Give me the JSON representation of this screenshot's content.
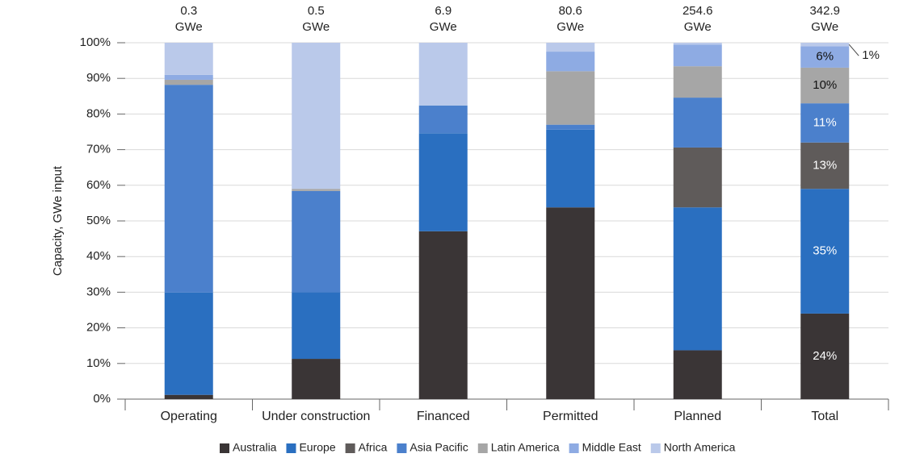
{
  "chart_data": {
    "type": "stacked_bar_percent",
    "y_axis_label": "Capacity, GWe input",
    "categories": [
      "Operating",
      "Under construction",
      "Financed",
      "Permitted",
      "Planned",
      "Total"
    ],
    "bar_totals": [
      {
        "value": 0.3,
        "label": "0.3"
      },
      {
        "value": 0.5,
        "label": "0.5"
      },
      {
        "value": 6.9,
        "label": "6.9"
      },
      {
        "value": 80.6,
        "label": "80.6"
      },
      {
        "value": 254.6,
        "label": "254.6"
      },
      {
        "value": 342.9,
        "label": "342.9"
      }
    ],
    "bar_total_unit": "GWe",
    "series": [
      {
        "name": "Australia",
        "color": "#3a3536",
        "values": [
          1.2,
          11.3,
          47.1,
          53.8,
          13.7,
          24
        ],
        "value_labels": [
          null,
          null,
          null,
          null,
          null,
          "24%"
        ]
      },
      {
        "name": "Europe",
        "color": "#2a6fc0",
        "values": [
          28.7,
          18.7,
          27.5,
          21.8,
          40.1,
          35
        ],
        "value_labels": [
          null,
          null,
          null,
          null,
          null,
          "35%"
        ]
      },
      {
        "name": "Africa",
        "color": "#5f5b5a",
        "values": [
          0,
          0,
          0,
          0,
          16.8,
          13
        ],
        "value_labels": [
          null,
          null,
          null,
          null,
          null,
          "13%"
        ]
      },
      {
        "name": "Asia Pacific",
        "color": "#4b80cc",
        "values": [
          58.3,
          28.4,
          7.8,
          1.4,
          14,
          11
        ],
        "value_labels": [
          null,
          null,
          null,
          null,
          null,
          "11%"
        ]
      },
      {
        "name": "Latin America",
        "color": "#a6a6a6",
        "values": [
          1.4,
          0.6,
          0,
          15,
          8.8,
          10
        ],
        "value_labels": [
          null,
          null,
          null,
          null,
          null,
          "10%"
        ]
      },
      {
        "name": "Middle East",
        "color": "#8eabe3",
        "values": [
          1.4,
          0,
          0,
          5.5,
          6.1,
          6
        ],
        "value_labels": [
          null,
          null,
          null,
          null,
          null,
          "6%"
        ]
      },
      {
        "name": "North America",
        "color": "#bac9ea",
        "values": [
          9,
          41,
          17.6,
          2.5,
          0.5,
          1
        ],
        "value_labels": [
          null,
          null,
          null,
          null,
          null,
          "1%"
        ]
      }
    ],
    "ylim": [
      0,
      100
    ],
    "yticks": [
      {
        "value": 0,
        "label": "0%"
      },
      {
        "value": 10,
        "label": "10%"
      },
      {
        "value": 20,
        "label": "20%"
      },
      {
        "value": 30,
        "label": "30%"
      },
      {
        "value": 40,
        "label": "40%"
      },
      {
        "value": 50,
        "label": "50%"
      },
      {
        "value": 60,
        "label": "60%"
      },
      {
        "value": 70,
        "label": "70%"
      },
      {
        "value": 80,
        "label": "80%"
      },
      {
        "value": 90,
        "label": "90%"
      },
      {
        "value": 100,
        "label": "100%"
      }
    ],
    "grid": true,
    "legend": "bottom"
  }
}
